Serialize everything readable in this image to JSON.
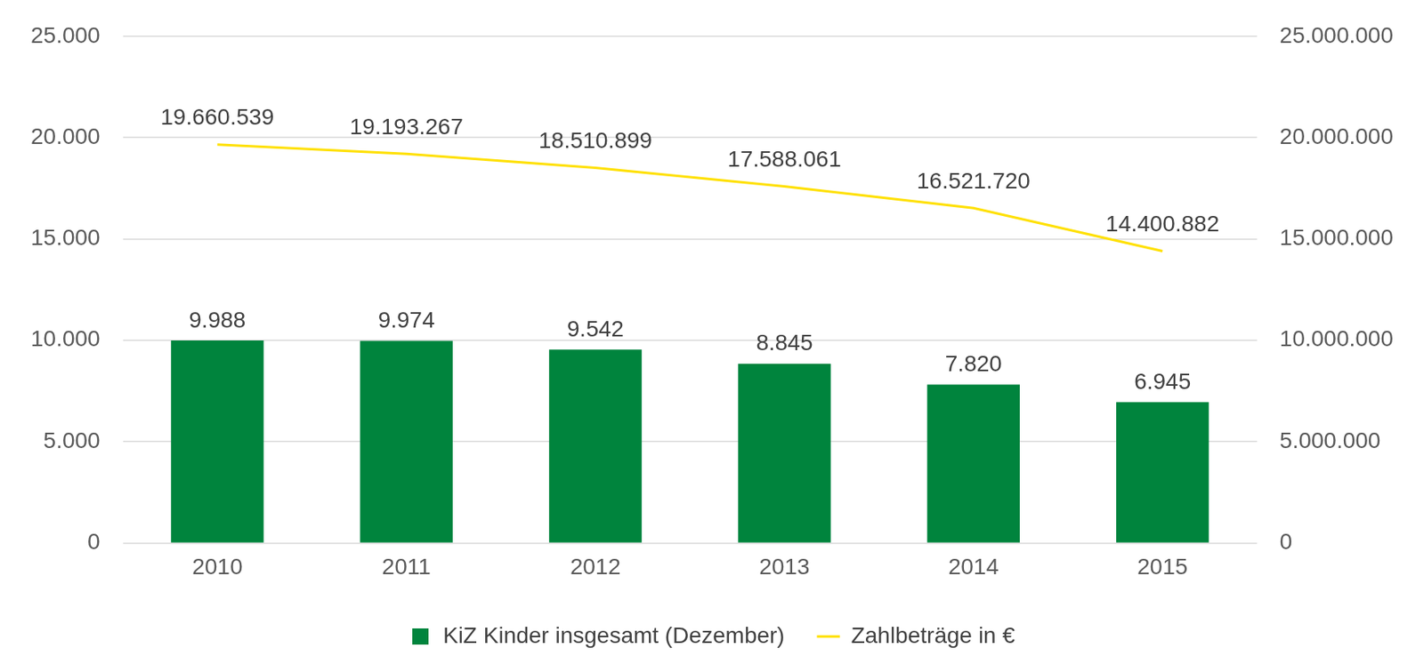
{
  "chart_data": {
    "type": "bar",
    "categories": [
      "2010",
      "2011",
      "2012",
      "2013",
      "2014",
      "2015"
    ],
    "series": [
      {
        "name": "KiZ Kinder insgesamt (Dezember)",
        "type": "bar",
        "color": "#00843d",
        "values": [
          9988,
          9974,
          9542,
          8845,
          7820,
          6945
        ],
        "value_labels": [
          "9.988",
          "9.974",
          "9.542",
          "8.845",
          "7.820",
          "6.945"
        ]
      },
      {
        "name": "Zahlbeträge in €",
        "type": "line",
        "color": "#ffe000",
        "axis": "y2",
        "values": [
          19660539,
          19193267,
          18510899,
          17588061,
          16521720,
          14400882
        ],
        "value_labels": [
          "19.660.539",
          "19.193.267",
          "18.510.899",
          "17.588.061",
          "16.521.720",
          "14.400.882"
        ]
      }
    ],
    "ylim": [
      0,
      25000
    ],
    "yticks": [
      0,
      {
        "value": 5000,
        "label": "5.000"
      },
      {
        "value": 10000,
        "label": "10.000"
      },
      {
        "value": 15000,
        "label": "15.000"
      },
      {
        "value": 20000,
        "label": "20.000"
      },
      {
        "value": 25000,
        "label": "25.000"
      }
    ],
    "y2lim": [
      0,
      25000000
    ],
    "y2ticks": [
      0,
      {
        "value": 5000000,
        "label": "5.000.000"
      },
      {
        "value": 10000000,
        "label": "10.000.000"
      },
      {
        "value": 15000000,
        "label": "15.000.000"
      },
      {
        "value": 20000000,
        "label": "20.000.000"
      },
      {
        "value": 25000000,
        "label": "25.000.000"
      }
    ],
    "grid": true,
    "legend": "bottom",
    "data_labels": true
  }
}
